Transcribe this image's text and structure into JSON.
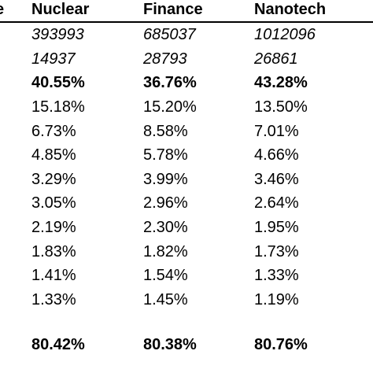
{
  "table": {
    "header": [
      "e",
      "Nuclear",
      "Finance",
      "Nanotech"
    ],
    "rows": [
      [
        "393993",
        "685037",
        "1012096"
      ],
      [
        "14937",
        "28793",
        "26861"
      ],
      [
        "40.55%",
        "36.76%",
        "43.28%"
      ],
      [
        "15.18%",
        "15.20%",
        "13.50%"
      ],
      [
        "6.73%",
        "8.58%",
        "7.01%"
      ],
      [
        "4.85%",
        "5.78%",
        "4.66%"
      ],
      [
        "3.29%",
        "3.99%",
        "3.46%"
      ],
      [
        "3.05%",
        "2.96%",
        "2.64%"
      ],
      [
        "2.19%",
        "2.30%",
        "1.95%"
      ],
      [
        "1.83%",
        "1.82%",
        "1.73%"
      ],
      [
        "1.41%",
        "1.54%",
        "1.33%"
      ],
      [
        "1.33%",
        "1.45%",
        "1.19%"
      ]
    ],
    "total_row": [
      "80.42%",
      "80.38%",
      "80.76%"
    ]
  }
}
